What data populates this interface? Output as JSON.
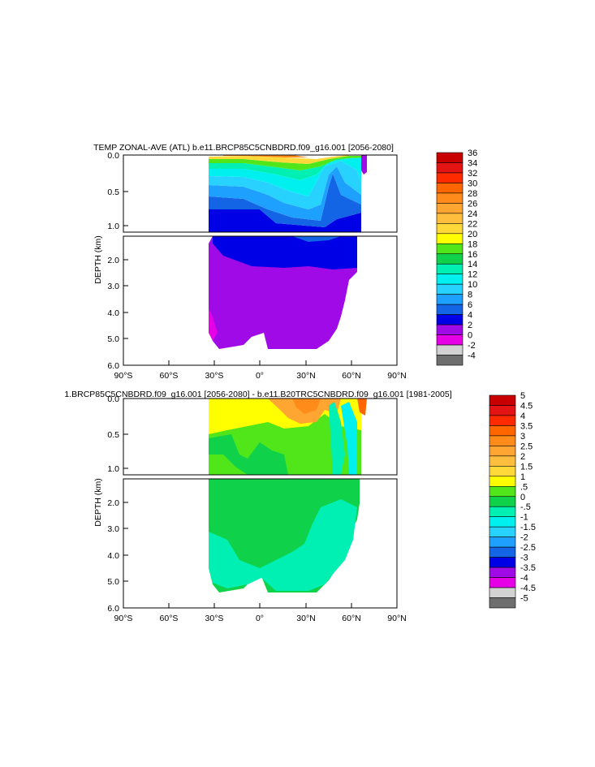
{
  "panels": [
    {
      "id": "top",
      "title": "TEMP ZONAL-AVE (ATL) b.e11.BRCP85C5CNBDRD.f09_g16.001 [2056-2080]",
      "ylabel": "DEPTH (km)",
      "upper_ticks": [
        "0.0",
        "0.5",
        "1.0"
      ],
      "lower_ticks": [
        "2.0",
        "3.0",
        "4.0",
        "5.0",
        "6.0"
      ],
      "x_ticks": [
        "90°S",
        "60°S",
        "30°S",
        "0°",
        "30°N",
        "60°N",
        "90°N"
      ],
      "colorbar": {
        "labels": [
          "36",
          "34",
          "32",
          "30",
          "28",
          "26",
          "24",
          "22",
          "20",
          "18",
          "16",
          "14",
          "12",
          "10",
          "8",
          "6",
          "4",
          "2",
          "0",
          "-2",
          "-4"
        ],
        "colors": [
          "#c80000",
          "#e41414",
          "#ff2a00",
          "#ff6600",
          "#ff8c1a",
          "#ffa531",
          "#ffbe3d",
          "#ffd83a",
          "#ffff00",
          "#50e61a",
          "#10d24a",
          "#00f0b4",
          "#00f0f0",
          "#28d2ff",
          "#1ea0ff",
          "#1464e6",
          "#0000e6",
          "#a00ae6",
          "#e600e6",
          "#d2d2d2",
          "#6e6e6e"
        ]
      }
    },
    {
      "id": "bottom",
      "title": "1.BRCP85C5CNBDRD.f09_g16.001 [2056-2080] - b.e11.B20TRC5CNBDRD.f09_g16.001 [1981-2005]",
      "ylabel": "DEPTH (km)",
      "upper_ticks": [
        "0.0",
        "0.5",
        "1.0"
      ],
      "lower_ticks": [
        "2.0",
        "3.0",
        "4.0",
        "5.0",
        "6.0"
      ],
      "x_ticks": [
        "90°S",
        "60°S",
        "30°S",
        "0°",
        "30°N",
        "60°N",
        "90°N"
      ],
      "colorbar": {
        "labels": [
          "5",
          "4.5",
          "4",
          "3.5",
          "3",
          "2.5",
          "2",
          "1.5",
          "1",
          ".5",
          "0",
          "-.5",
          "-1",
          "-1.5",
          "-2",
          "-2.5",
          "-3",
          "-3.5",
          "-4",
          "-4.5",
          "-5"
        ],
        "colors": [
          "#c80000",
          "#e41414",
          "#ff2a00",
          "#ff6600",
          "#ff8c1a",
          "#ffa531",
          "#ffbe3d",
          "#ffd83a",
          "#ffff00",
          "#50e61a",
          "#10d24a",
          "#00f0b4",
          "#00f0f0",
          "#28d2ff",
          "#1ea0ff",
          "#1464e6",
          "#0000e6",
          "#a00ae6",
          "#e600e6",
          "#d2d2d2",
          "#6e6e6e"
        ]
      }
    }
  ],
  "chart_data": [
    {
      "type": "heatmap",
      "title": "TEMP ZONAL-AVE (ATL) b.e11.BRCP85C5CNBDRD.f09_g16.001 [2056-2080]",
      "xlabel": "",
      "ylabel": "DEPTH (km)",
      "xlim": [
        -90,
        90
      ],
      "ylim_upper_km": [
        0.0,
        1.0
      ],
      "ylim_lower_km": [
        1.0,
        6.0
      ],
      "x_tick_labels": [
        "90°S",
        "60°S",
        "30°S",
        "0°",
        "30°N",
        "60°N",
        "90°N"
      ],
      "colorbar_levels": [
        -4,
        -2,
        0,
        2,
        4,
        6,
        8,
        10,
        12,
        14,
        16,
        18,
        20,
        22,
        24,
        26,
        28,
        30,
        32,
        34,
        36
      ],
      "approx_field": [
        {
          "region": "surface tropics 0-0.1 km",
          "value": 28
        },
        {
          "region": "upper ocean 0.2-0.5 km",
          "value": 12
        },
        {
          "region": "0.5-1.0 km mid-latitudes",
          "value": 8
        },
        {
          "region": "1.0-2.5 km",
          "value": 5
        },
        {
          "region": "2.5-5.5 km deep",
          "value": 3
        },
        {
          "region": "30°S bottom edge",
          "value": 1
        }
      ]
    },
    {
      "type": "heatmap",
      "title": "1.BRCP85C5CNBDRD.f09_g16.001 [2056-2080] - b.e11.B20TRC5CNBDRD.f09_g16.001 [1981-2005]",
      "xlabel": "",
      "ylabel": "DEPTH (km)",
      "xlim": [
        -90,
        90
      ],
      "ylim_upper_km": [
        0.0,
        1.0
      ],
      "ylim_lower_km": [
        1.0,
        6.0
      ],
      "x_tick_labels": [
        "90°S",
        "60°S",
        "30°S",
        "0°",
        "30°N",
        "60°N",
        "90°N"
      ],
      "colorbar_levels": [
        -5,
        -4.5,
        -4,
        -3.5,
        -3,
        -2.5,
        -2,
        -1.5,
        -1,
        -0.5,
        0,
        0.5,
        1,
        1.5,
        2,
        2.5,
        3,
        3.5,
        4,
        4.5,
        5
      ],
      "approx_field": [
        {
          "region": "surface 0-0.2 km",
          "value": 1.5
        },
        {
          "region": "subtropical north 0-0.3 km",
          "value": 2.5
        },
        {
          "region": "0.3-1.0 km",
          "value": 0.8
        },
        {
          "region": "1.0-5.5 km",
          "value": 0.3
        },
        {
          "region": "deep 2.5-4.5 km 30N-55N",
          "value": -0.2
        },
        {
          "region": "60°N narrow column",
          "value": -0.5
        }
      ]
    }
  ]
}
